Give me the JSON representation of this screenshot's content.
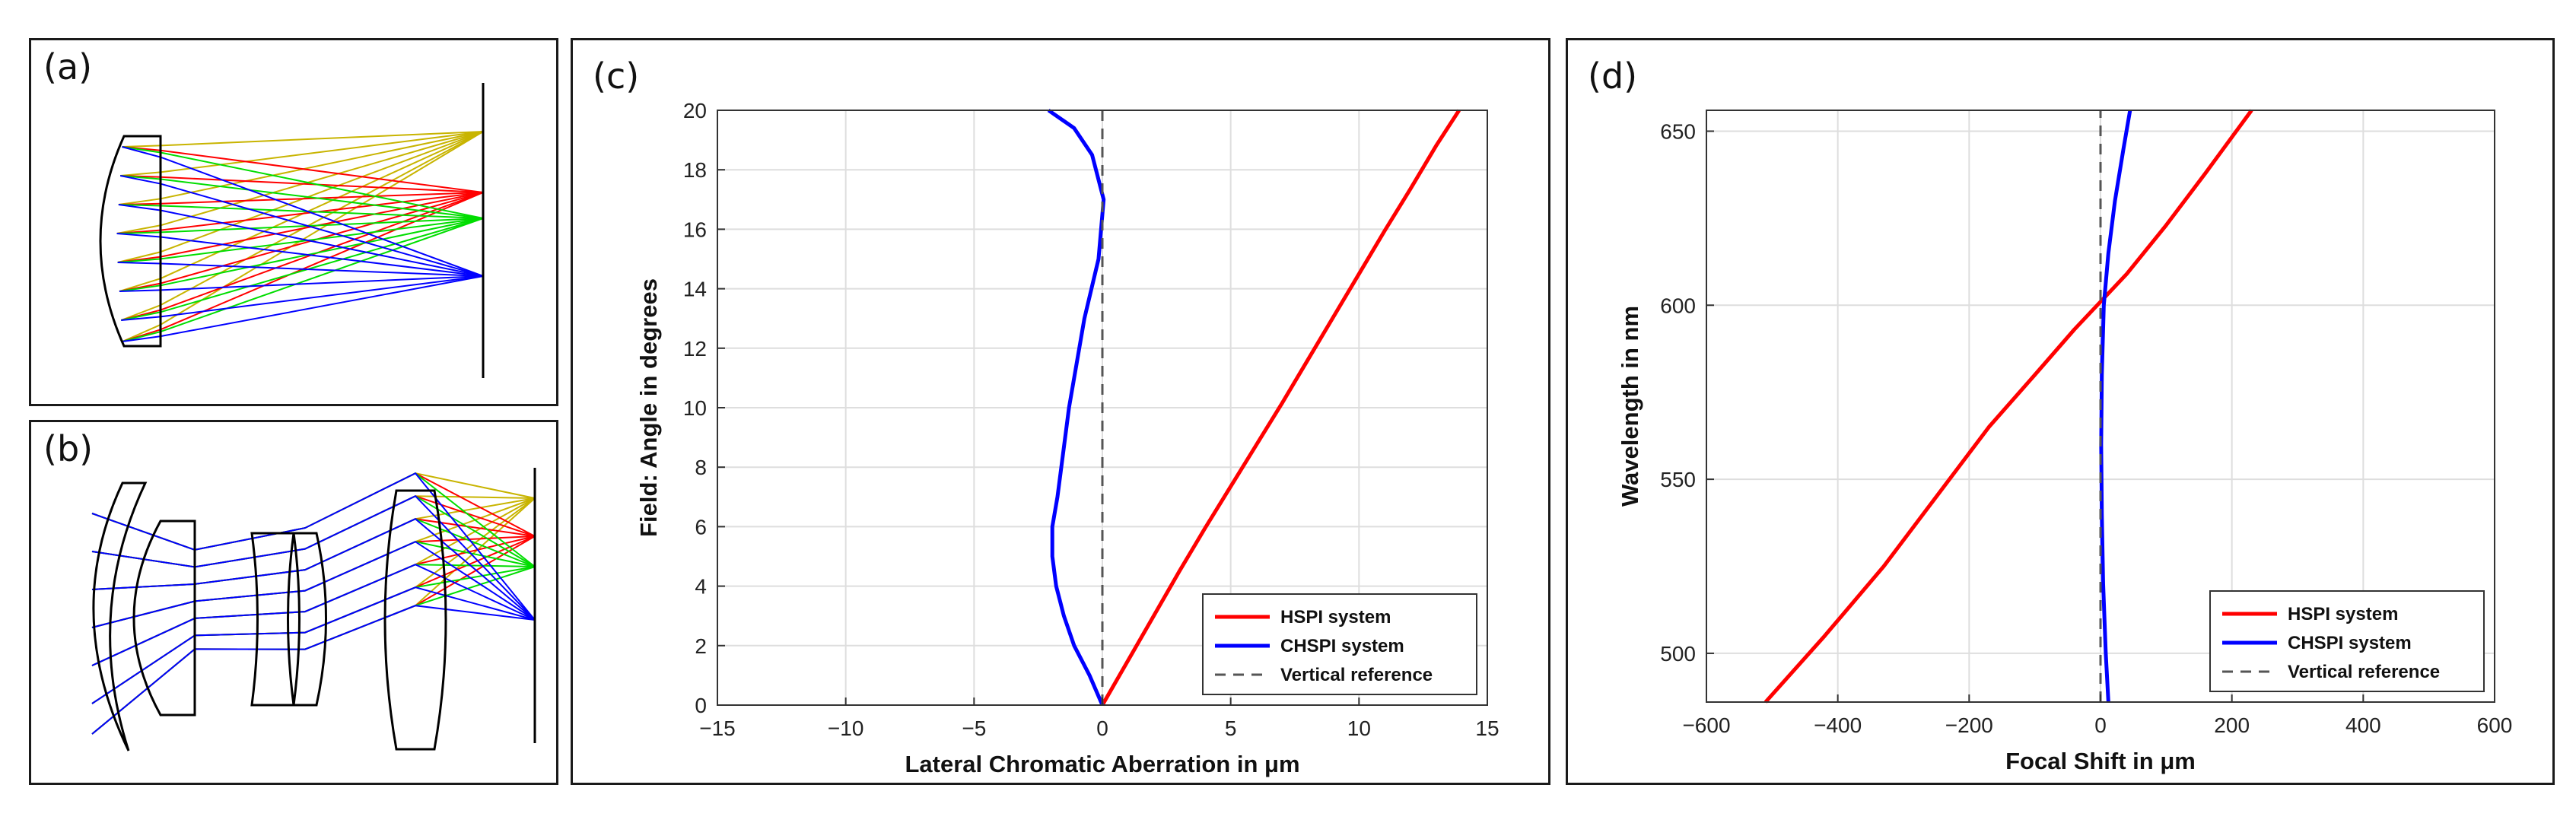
{
  "panels": {
    "a": {
      "label": "(a)"
    },
    "b": {
      "label": "(b)"
    },
    "c": {
      "label": "(c)"
    },
    "d": {
      "label": "(d)"
    }
  },
  "chart_data": [
    {
      "id": "c",
      "type": "line",
      "title": "",
      "xlabel": "Lateral Chromatic Aberration in μm",
      "ylabel": "Field: Angle in degrees",
      "xlim": [
        -15,
        15
      ],
      "ylim": [
        0,
        20
      ],
      "xticks": [
        -15,
        -10,
        -5,
        0,
        5,
        10,
        15
      ],
      "yticks": [
        0,
        2,
        4,
        6,
        8,
        10,
        12,
        14,
        16,
        18,
        20
      ],
      "xtick_labels": [
        "−15",
        "−10",
        "−5",
        "0",
        "5",
        "10",
        "15"
      ],
      "ytick_labels": [
        "0",
        "2",
        "4",
        "6",
        "8",
        "10",
        "12",
        "14",
        "16",
        "18",
        "20"
      ],
      "grid": true,
      "legend_position": "bottom-right",
      "series": [
        {
          "name": "HSPI system",
          "color": "#ff0000",
          "style": "solid",
          "x": [
            0,
            1,
            2,
            3,
            4,
            5,
            6,
            7,
            8,
            9,
            10,
            11,
            12,
            13,
            13.9
          ],
          "y": [
            0,
            1.5,
            3.0,
            4.5,
            5.95,
            7.35,
            8.75,
            10.15,
            11.6,
            13.05,
            14.5,
            15.95,
            17.35,
            18.8,
            20
          ]
        },
        {
          "name": "CHSPI system",
          "color": "#0000ff",
          "style": "solid",
          "x": [
            0,
            -0.5,
            -1.1,
            -1.5,
            -1.8,
            -1.95,
            -1.95,
            -1.75,
            -1.3,
            -0.7,
            -0.15,
            0.05,
            -0.4,
            -1.1,
            -2.1
          ],
          "y": [
            0,
            1,
            2,
            3,
            4,
            5,
            6,
            7,
            10,
            13,
            15,
            17,
            18.5,
            19.4,
            20
          ]
        },
        {
          "name": "Vertical reference",
          "color": "#555555",
          "style": "dashed",
          "x": [
            0,
            0
          ],
          "y": [
            0,
            20
          ]
        }
      ]
    },
    {
      "id": "d",
      "type": "line",
      "title": "",
      "xlabel": "Focal Shift in μm",
      "ylabel": "Wavelength in nm",
      "xlim": [
        -600,
        600
      ],
      "ylim": [
        486,
        656
      ],
      "xticks": [
        -600,
        -400,
        -200,
        0,
        200,
        400,
        600
      ],
      "yticks": [
        500,
        550,
        600,
        650
      ],
      "xtick_labels": [
        "−600",
        "−400",
        "−200",
        "0",
        "200",
        "400",
        "600"
      ],
      "ytick_labels": [
        "500",
        "550",
        "600",
        "650"
      ],
      "grid": true,
      "legend_position": "bottom-right",
      "series": [
        {
          "name": "HSPI system",
          "color": "#ff0000",
          "style": "solid",
          "x": [
            -510,
            -420,
            -330,
            -250,
            -170,
            -100,
            -40,
            0,
            40,
            100,
            160,
            230
          ],
          "y": [
            486,
            505,
            525,
            545,
            565,
            580,
            593,
            601,
            609,
            623,
            638,
            656
          ]
        },
        {
          "name": "CHSPI system",
          "color": "#0000ff",
          "style": "solid",
          "x": [
            12,
            8,
            4,
            2,
            1,
            2,
            5,
            12,
            22,
            35,
            45
          ],
          "y": [
            486,
            500,
            520,
            540,
            560,
            580,
            600,
            615,
            630,
            645,
            656
          ]
        },
        {
          "name": "Vertical reference",
          "color": "#555555",
          "style": "dashed",
          "x": [
            0,
            0
          ],
          "y": [
            486,
            656
          ]
        }
      ]
    }
  ]
}
